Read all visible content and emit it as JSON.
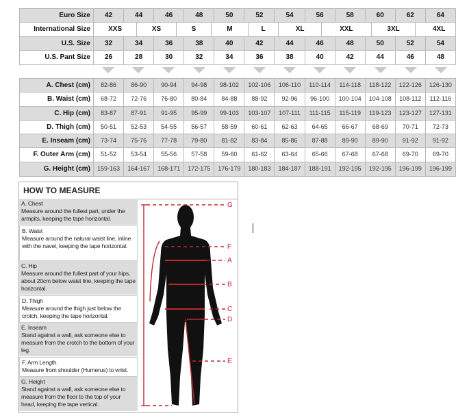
{
  "size_table": {
    "euro": {
      "label": "Euro Size",
      "values": [
        "42",
        "44",
        "46",
        "48",
        "50",
        "52",
        "54",
        "56",
        "58",
        "60",
        "62",
        "64"
      ]
    },
    "international": {
      "label": "International Size",
      "values": [
        "XXS",
        "XS",
        "S",
        "M",
        "L",
        "XL",
        "XXL",
        "3XL",
        "4XL"
      ]
    },
    "us": {
      "label": "U.S. Size",
      "values": [
        "32",
        "34",
        "36",
        "38",
        "40",
        "42",
        "44",
        "46",
        "48",
        "50",
        "52",
        "54"
      ]
    },
    "us_pant": {
      "label": "U.S. Pant Size",
      "values": [
        "26",
        "28",
        "30",
        "32",
        "34",
        "36",
        "38",
        "40",
        "42",
        "44",
        "46",
        "48"
      ]
    }
  },
  "measure_table": [
    {
      "label": "A. Chest (cm)",
      "values": [
        "82-86",
        "86-90",
        "90-94",
        "94-98",
        "98-102",
        "102-106",
        "106-110",
        "110-114",
        "114-118",
        "118-122",
        "122-126",
        "126-130"
      ]
    },
    {
      "label": "B. Waist (cm)",
      "values": [
        "68-72",
        "72-76",
        "76-80",
        "80-84",
        "84-88",
        "88-92",
        "92-96",
        "96-100",
        "100-104",
        "104-108",
        "108-112",
        "112-116"
      ]
    },
    {
      "label": "C. Hip (cm)",
      "values": [
        "83-87",
        "87-91",
        "91-95",
        "95-99",
        "99-103",
        "103-107",
        "107-111",
        "111-115",
        "115-119",
        "119-123",
        "123-127",
        "127-131"
      ]
    },
    {
      "label": "D. Thigh (cm)",
      "values": [
        "50-51",
        "52-53",
        "54-55",
        "56-57",
        "58-59",
        "60-61",
        "62-63",
        "64-65",
        "66-67",
        "68-69",
        "70-71",
        "72-73"
      ]
    },
    {
      "label": "E. Inseam (cm)",
      "values": [
        "73-74",
        "75-76",
        "77-78",
        "79-80",
        "81-82",
        "83-84",
        "85-86",
        "87-88",
        "89-90",
        "89-90",
        "91-92",
        "91-92"
      ]
    },
    {
      "label": "F. Outer Arm (cm)",
      "values": [
        "51-52",
        "53-54",
        "55-56",
        "57-58",
        "59-60",
        "61-62",
        "63-64",
        "65-66",
        "67-68",
        "67-68",
        "69-70",
        "69-70"
      ]
    },
    {
      "label": "G. Height (cm)",
      "values": [
        "159-163",
        "164-167",
        "168-171",
        "172-175",
        "176-179",
        "180-183",
        "184-187",
        "188-191",
        "192-195",
        "192-195",
        "196-199",
        "196-199"
      ]
    }
  ],
  "how_to_measure": {
    "title": "HOW TO MEASURE",
    "items": [
      {
        "title": "A. Chest",
        "text": "Measure around the fullest part, under the armpits, keeping the tape horizontal."
      },
      {
        "title": "B. Waist",
        "text": "Measure around the natural waist line, inline with the navel, keeping the tape horizontal."
      },
      {
        "title": "C. Hip",
        "text": "Measure around the fullest part of your hips, about 20cm below waist line, keeping the tape horizontal."
      },
      {
        "title": "D. Thigh",
        "text": "Measure around the thigh just below the crotch, keeping the tape horizontal."
      },
      {
        "title": "E. Inseam",
        "text": "Stand against a wall, ask someone else to measure from the crotch to the bottom of your leg."
      },
      {
        "title": "F. Arm Length",
        "text": "Measure from shoulder (Humerus) to wrist."
      },
      {
        "title": "G. Height",
        "text": "Stand against a wall, ask someone else to measure from the floor to the top of your head, keeping the tape vertical."
      }
    ],
    "figure_letters": [
      "G",
      "F",
      "A",
      "B",
      "C",
      "D",
      "E"
    ]
  },
  "colors": {
    "row_gray": "#dcdcdc",
    "measure_red": "#c0272d",
    "silhouette": "#111111"
  }
}
